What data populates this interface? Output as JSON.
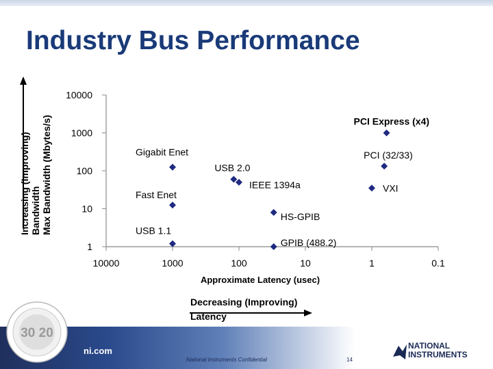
{
  "slide": {
    "title": "Industry Bus Performance",
    "footer_url": "ni.com",
    "footer_confidential": "National Instruments Confidential",
    "page_number": "14",
    "logo_line1": "NATIONAL",
    "logo_line2": "INSTRUMENTS",
    "seal_text": "30 20"
  },
  "annotations": {
    "y_note_line1": "Increasing (Improving)",
    "y_note_line2": "Bandwidth",
    "x_note_line1": "Decreasing (Improving)",
    "x_note_line2": "Latency"
  },
  "colors": {
    "title": "#1a3a78",
    "marker": "#1f2a80",
    "axis": "#888888",
    "arrow": "#000000"
  },
  "chart_data": {
    "type": "scatter",
    "title": "",
    "xlabel": "Approximate Latency (usec)",
    "ylabel": "Max Bandwidth (Mbytes/s)",
    "x_scale": "log",
    "x_reversed": true,
    "y_scale": "log",
    "xlim": [
      10000,
      0.1
    ],
    "ylim": [
      1,
      10000
    ],
    "x_ticks": [
      "10000",
      "1000",
      "100",
      "10",
      "1",
      "0.1"
    ],
    "y_ticks": [
      "10000",
      "1000",
      "100",
      "10",
      "1"
    ],
    "grid": false,
    "legend": "none",
    "points": [
      {
        "label": "PCI Express (x4)",
        "x": 0.6,
        "y": 1000
      },
      {
        "label": "PCI (32/33)",
        "x": 0.65,
        "y": 133
      },
      {
        "label": "VXI",
        "x": 1,
        "y": 35
      },
      {
        "label": "Gigabit Enet",
        "x": 1000,
        "y": 125
      },
      {
        "label": "USB 2.0",
        "x": 120,
        "y": 60
      },
      {
        "label": "IEEE 1394a",
        "x": 100,
        "y": 50
      },
      {
        "label": "Fast Enet",
        "x": 1000,
        "y": 12.5
      },
      {
        "label": "HS-GPIB",
        "x": 30,
        "y": 8
      },
      {
        "label": "USB 1.1",
        "x": 1000,
        "y": 1.2
      },
      {
        "label": "GPIB (488.2)",
        "x": 30,
        "y": 1
      }
    ]
  }
}
